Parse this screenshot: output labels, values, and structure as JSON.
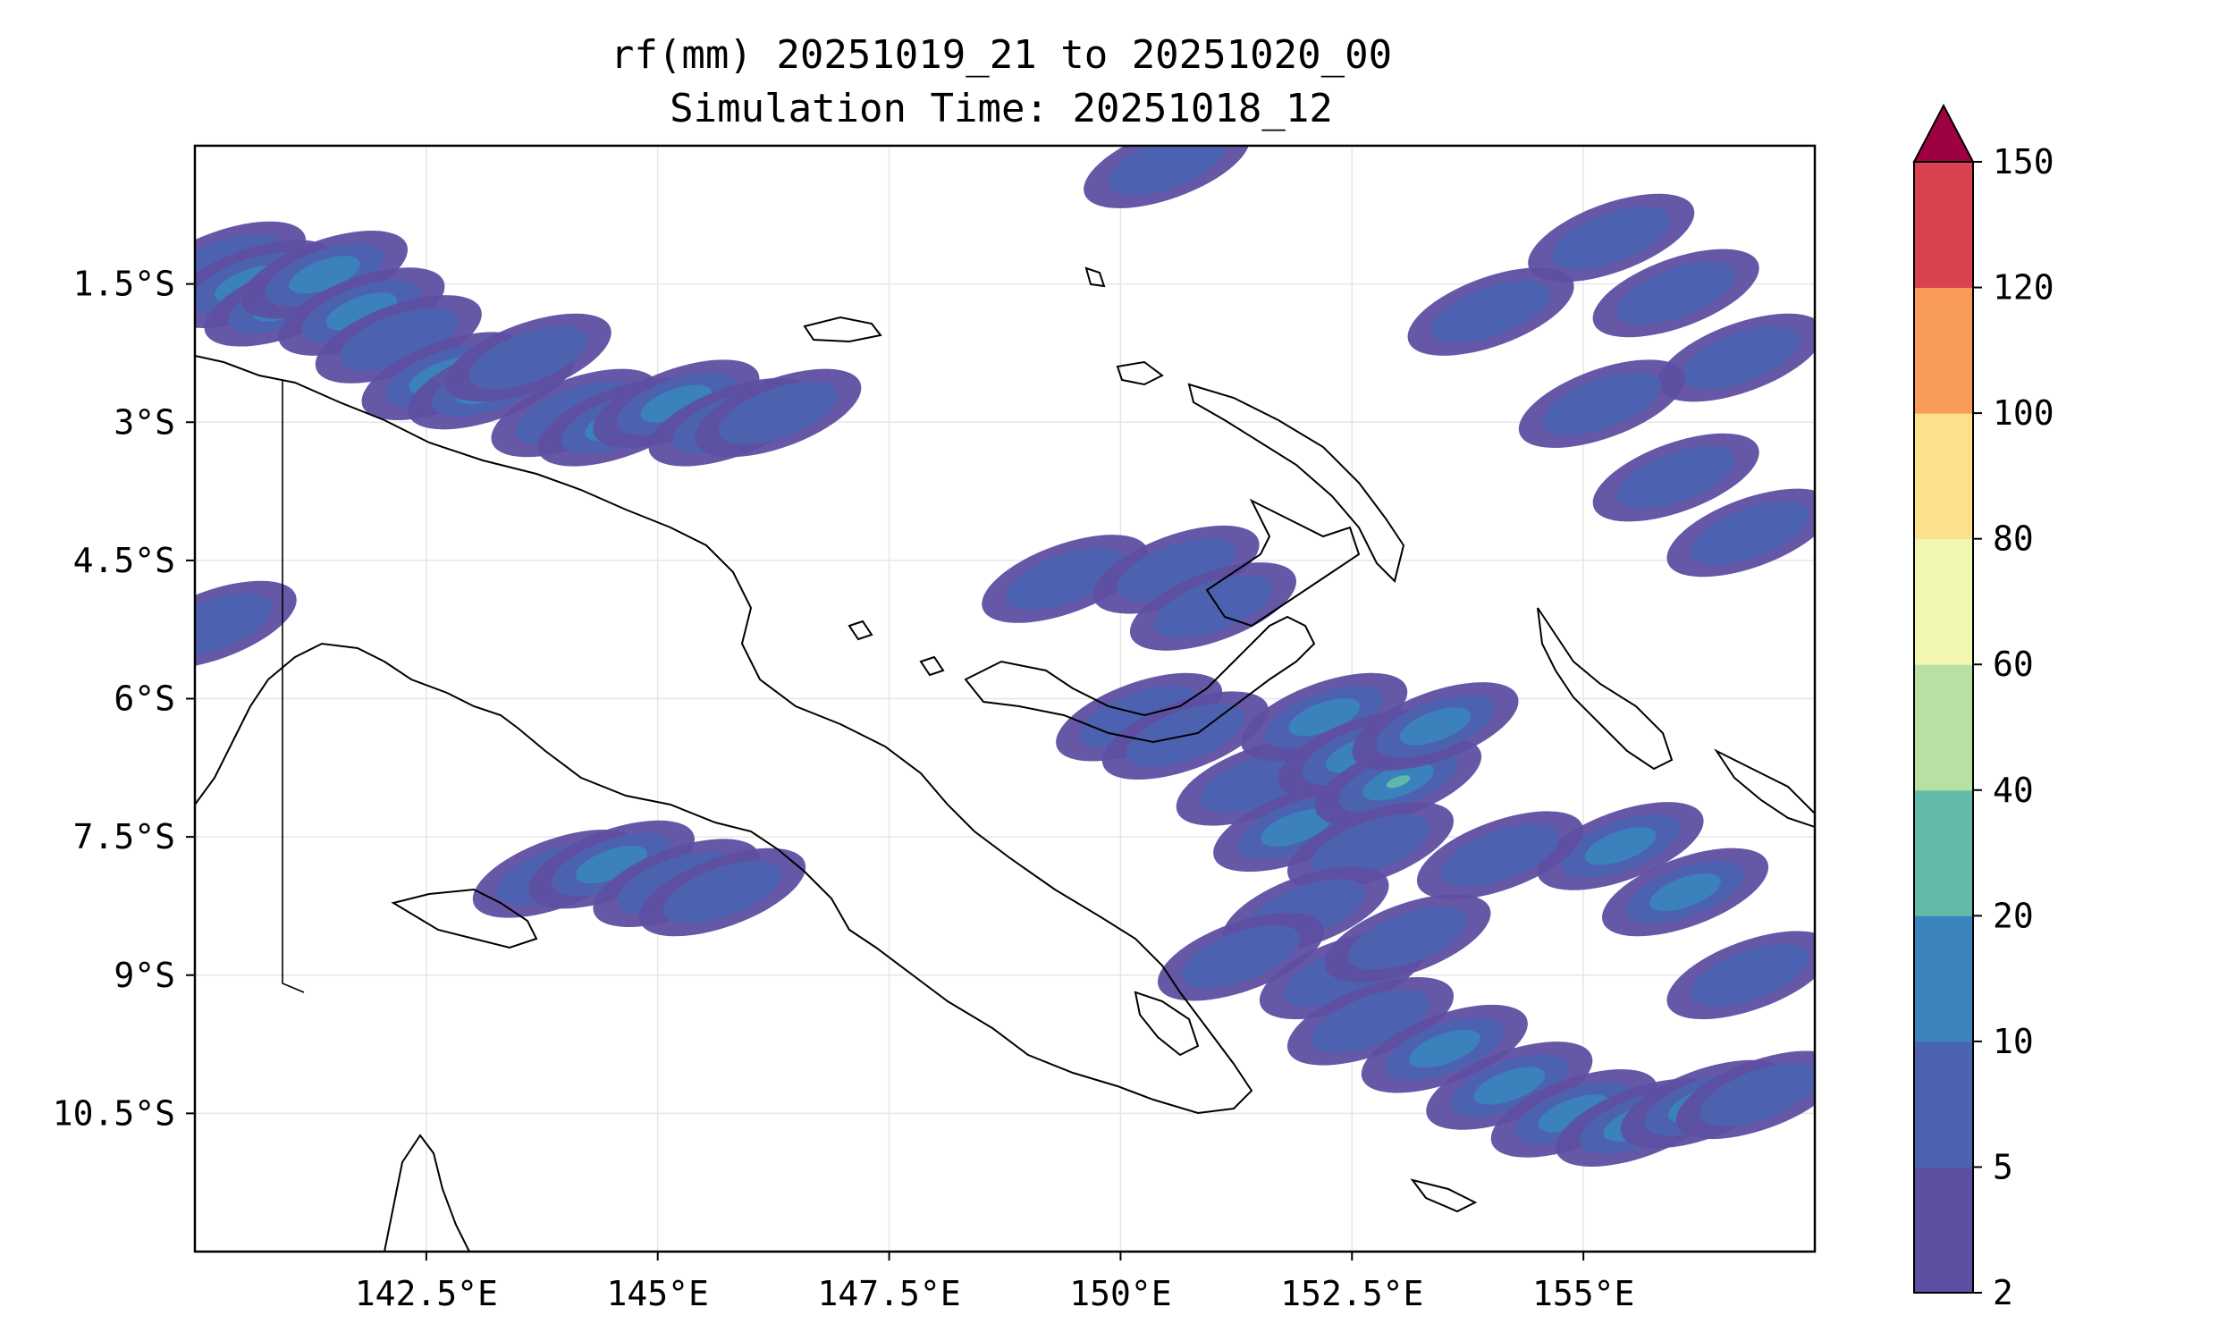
{
  "title": {
    "line1": "rf(mm) 20251019_21 to 20251020_00",
    "line2": "Simulation Time: 20251018_12"
  },
  "map": {
    "lon_range": [
      140.0,
      157.5
    ],
    "lat_range": [
      -12.0,
      0.0
    ],
    "x_ticks": [
      {
        "lon": 142.5,
        "label": "142.5°E"
      },
      {
        "lon": 145.0,
        "label": "145°E"
      },
      {
        "lon": 147.5,
        "label": "147.5°E"
      },
      {
        "lon": 150.0,
        "label": "150°E"
      },
      {
        "lon": 152.5,
        "label": "152.5°E"
      },
      {
        "lon": 155.0,
        "label": "155°E"
      }
    ],
    "y_ticks": [
      {
        "lat": -1.5,
        "label": "1.5°S"
      },
      {
        "lat": -3.0,
        "label": "3°S"
      },
      {
        "lat": -4.5,
        "label": "4.5°S"
      },
      {
        "lat": -6.0,
        "label": "6°S"
      },
      {
        "lat": -7.5,
        "label": "7.5°S"
      },
      {
        "lat": -9.0,
        "label": "9°S"
      },
      {
        "lat": -10.5,
        "label": "10.5°S"
      }
    ],
    "grid": true
  },
  "colorbar": {
    "extend": "max",
    "extend_color": "#9e0142",
    "levels": [
      {
        "label": "2",
        "color": "#5e4fa2"
      },
      {
        "label": "5",
        "color": "#4b63b0"
      },
      {
        "label": "10",
        "color": "#3a83bd"
      },
      {
        "label": "20",
        "color": "#62bba9"
      },
      {
        "label": "40",
        "color": "#b8e0a3"
      },
      {
        "label": "60",
        "color": "#f2f7b0"
      },
      {
        "label": "80",
        "color": "#fde08b"
      },
      {
        "label": "100",
        "color": "#f99c5a"
      },
      {
        "label": "120",
        "color": "#d9434f"
      },
      {
        "label": "150",
        "color": ""
      }
    ]
  },
  "rain_cells": [
    {
      "lon": 140.3,
      "lat": -1.3,
      "level": 1
    },
    {
      "lon": 140.6,
      "lat": -1.5,
      "level": 2
    },
    {
      "lon": 141.0,
      "lat": -1.7,
      "level": 3
    },
    {
      "lon": 141.4,
      "lat": -1.4,
      "level": 2
    },
    {
      "lon": 141.8,
      "lat": -1.8,
      "level": 2
    },
    {
      "lon": 142.2,
      "lat": -2.1,
      "level": 1
    },
    {
      "lon": 142.7,
      "lat": -2.5,
      "level": 3
    },
    {
      "lon": 143.2,
      "lat": -2.6,
      "level": 2
    },
    {
      "lon": 143.6,
      "lat": -2.3,
      "level": 1
    },
    {
      "lon": 144.1,
      "lat": -2.9,
      "level": 1
    },
    {
      "lon": 144.6,
      "lat": -3.0,
      "level": 2
    },
    {
      "lon": 145.2,
      "lat": -2.8,
      "level": 2
    },
    {
      "lon": 145.8,
      "lat": -3.0,
      "level": 2
    },
    {
      "lon": 146.3,
      "lat": -2.9,
      "level": 1
    },
    {
      "lon": 140.2,
      "lat": -5.2,
      "level": 1
    },
    {
      "lon": 143.9,
      "lat": -7.9,
      "level": 1
    },
    {
      "lon": 144.5,
      "lat": -7.8,
      "level": 2
    },
    {
      "lon": 145.2,
      "lat": -8.0,
      "level": 1
    },
    {
      "lon": 145.7,
      "lat": -8.1,
      "level": 1
    },
    {
      "lon": 149.4,
      "lat": -4.7,
      "level": 1
    },
    {
      "lon": 150.6,
      "lat": -4.6,
      "level": 1
    },
    {
      "lon": 151.0,
      "lat": -5.0,
      "level": 1
    },
    {
      "lon": 150.2,
      "lat": -6.2,
      "level": 1
    },
    {
      "lon": 150.7,
      "lat": -6.4,
      "level": 1
    },
    {
      "lon": 151.5,
      "lat": -6.9,
      "level": 1
    },
    {
      "lon": 151.9,
      "lat": -7.4,
      "level": 2
    },
    {
      "lon": 152.2,
      "lat": -6.2,
      "level": 2
    },
    {
      "lon": 152.6,
      "lat": -6.6,
      "level": 2
    },
    {
      "lon": 153.0,
      "lat": -6.9,
      "level": 3
    },
    {
      "lon": 153.4,
      "lat": -6.3,
      "level": 2
    },
    {
      "lon": 152.7,
      "lat": -7.6,
      "level": 1
    },
    {
      "lon": 152.0,
      "lat": -8.3,
      "level": 1
    },
    {
      "lon": 151.3,
      "lat": -8.8,
      "level": 1
    },
    {
      "lon": 152.4,
      "lat": -9.0,
      "level": 1
    },
    {
      "lon": 153.1,
      "lat": -8.6,
      "level": 1
    },
    {
      "lon": 152.7,
      "lat": -9.5,
      "level": 1
    },
    {
      "lon": 153.5,
      "lat": -9.8,
      "level": 2
    },
    {
      "lon": 154.2,
      "lat": -10.2,
      "level": 2
    },
    {
      "lon": 154.9,
      "lat": -10.5,
      "level": 2
    },
    {
      "lon": 155.6,
      "lat": -10.6,
      "level": 2
    },
    {
      "lon": 156.3,
      "lat": -10.4,
      "level": 2
    },
    {
      "lon": 156.9,
      "lat": -10.3,
      "level": 1
    },
    {
      "lon": 155.4,
      "lat": -7.6,
      "level": 2
    },
    {
      "lon": 156.1,
      "lat": -8.1,
      "level": 2
    },
    {
      "lon": 156.8,
      "lat": -9.0,
      "level": 1
    },
    {
      "lon": 154.1,
      "lat": -7.7,
      "level": 1
    },
    {
      "lon": 155.3,
      "lat": -1.0,
      "level": 1
    },
    {
      "lon": 156.0,
      "lat": -1.6,
      "level": 1
    },
    {
      "lon": 156.7,
      "lat": -2.3,
      "level": 1
    },
    {
      "lon": 155.2,
      "lat": -2.8,
      "level": 1
    },
    {
      "lon": 156.0,
      "lat": -3.6,
      "level": 1
    },
    {
      "lon": 156.8,
      "lat": -4.2,
      "level": 1
    },
    {
      "lon": 154.0,
      "lat": -1.8,
      "level": 1
    },
    {
      "lon": 150.5,
      "lat": -0.2,
      "level": 1
    }
  ]
}
